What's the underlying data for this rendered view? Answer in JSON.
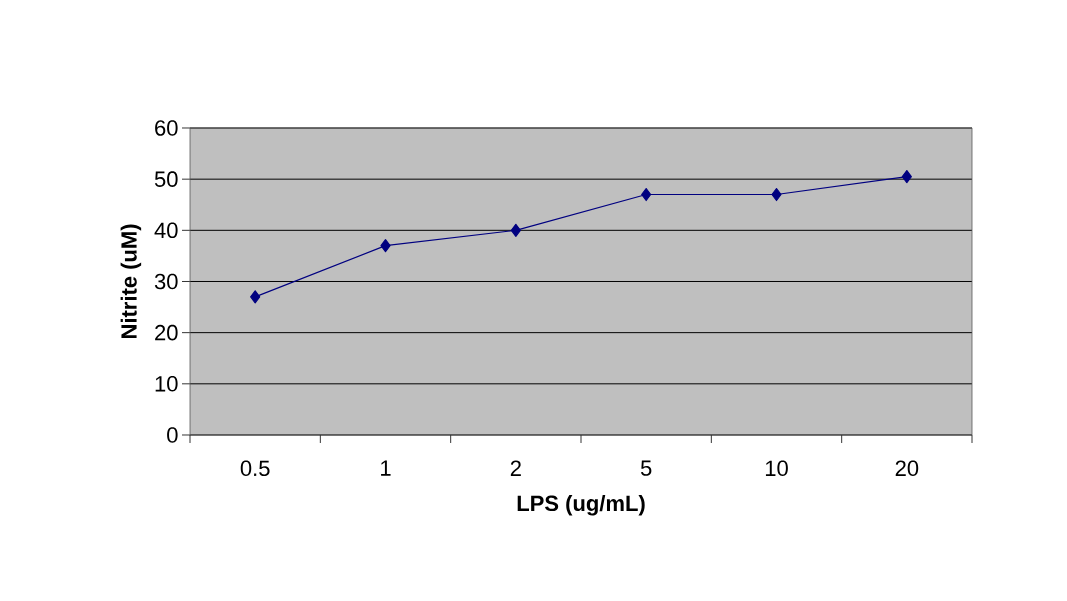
{
  "chart_data": {
    "type": "line",
    "xlabel": "LPS (ug/mL)",
    "ylabel": "Nitrite (uM)",
    "categories": [
      "0.5",
      "1",
      "2",
      "5",
      "10",
      "20"
    ],
    "series": [
      {
        "color": "#000080",
        "values": [
          27,
          37,
          40,
          47,
          47,
          50.5
        ]
      }
    ],
    "ylim": [
      0,
      60
    ],
    "yticks": [
      0,
      10,
      20,
      30,
      40,
      50,
      60
    ],
    "grid": "y",
    "marker": "diamond",
    "line_style": "solid"
  }
}
